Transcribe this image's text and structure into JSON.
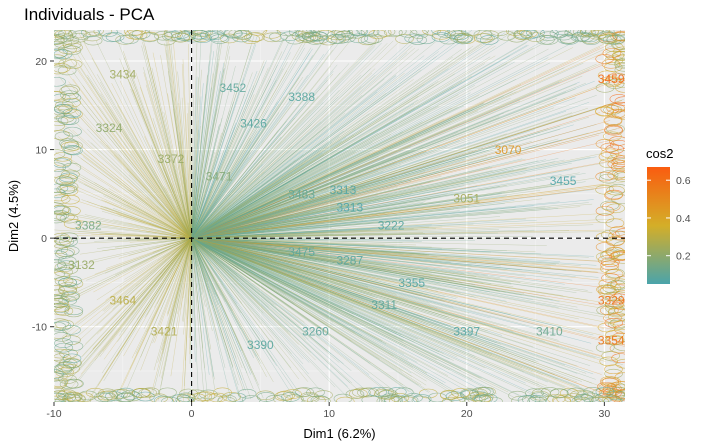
{
  "chart_data": {
    "type": "scatter",
    "title": "Individuals - PCA",
    "xlabel": "Dim1 (6.2%)",
    "ylabel": "Dim2 (4.5%)",
    "xlim": [
      -10,
      31.5
    ],
    "ylim": [
      -18.5,
      23.5
    ],
    "x_ticks": [
      -10,
      0,
      10,
      20,
      30
    ],
    "y_ticks": [
      -10,
      0,
      10,
      20
    ],
    "reference_lines": {
      "x": 0,
      "y": 0,
      "style": "dashed"
    },
    "grid": true,
    "background": "#ebebeb",
    "legend": {
      "title": "cos2",
      "placement": "right",
      "breaks": [
        0.2,
        0.4,
        0.6
      ],
      "range": [
        0.05,
        0.67
      ],
      "colors": [
        "#4aa4ab",
        "#d4ae28",
        "#fa5c10"
      ]
    },
    "point_labels": [
      {
        "x": 4.5,
        "y": 12.5,
        "label": "3426",
        "cos2": 0.08
      },
      {
        "x": -1.5,
        "y": 8.5,
        "label": "3372",
        "cos2": 0.22
      },
      {
        "x": 2.0,
        "y": 6.5,
        "label": "3471",
        "cos2": 0.18
      },
      {
        "x": 11.0,
        "y": 5.0,
        "label": "3313",
        "cos2": 0.07
      },
      {
        "x": 8.0,
        "y": 4.5,
        "label": "3483",
        "cos2": 0.1
      },
      {
        "x": 11.5,
        "y": 3.0,
        "label": "3313",
        "cos2": 0.06
      },
      {
        "x": -7.5,
        "y": 1.0,
        "label": "3382",
        "cos2": 0.15
      },
      {
        "x": 8.0,
        "y": -2.0,
        "label": "3475",
        "cos2": 0.09
      },
      {
        "x": 11.5,
        "y": -3.0,
        "label": "3287",
        "cos2": 0.08
      },
      {
        "x": -5.0,
        "y": -7.5,
        "label": "3464",
        "cos2": 0.3
      },
      {
        "x": -2.0,
        "y": -11.0,
        "label": "3421",
        "cos2": 0.28
      },
      {
        "x": 9.0,
        "y": -11.0,
        "label": "3260",
        "cos2": 0.09
      },
      {
        "x": 20.0,
        "y": -11.0,
        "label": "3397",
        "cos2": 0.07
      },
      {
        "x": 26.0,
        "y": -11.0,
        "label": "3410",
        "cos2": 0.12
      },
      {
        "x": 5.0,
        "y": -12.5,
        "label": "3390",
        "cos2": 0.08
      },
      {
        "x": 23.0,
        "y": 9.5,
        "label": "3070",
        "cos2": 0.45
      },
      {
        "x": 20.0,
        "y": 4.0,
        "label": "3051",
        "cos2": 0.25
      },
      {
        "x": 27.0,
        "y": 6.0,
        "label": "3455",
        "cos2": 0.06
      },
      {
        "x": 8.0,
        "y": 15.5,
        "label": "3388",
        "cos2": 0.08
      },
      {
        "x": 3.0,
        "y": 16.5,
        "label": "3452",
        "cos2": 0.09
      },
      {
        "x": -5.0,
        "y": 18.0,
        "label": "3434",
        "cos2": 0.24
      },
      {
        "x": -6.0,
        "y": 12.0,
        "label": "3324",
        "cos2": 0.2
      },
      {
        "x": 14.5,
        "y": 1.0,
        "label": "3222",
        "cos2": 0.08
      },
      {
        "x": 16.0,
        "y": -5.5,
        "label": "3355",
        "cos2": 0.07
      },
      {
        "x": 14.0,
        "y": -8.0,
        "label": "3311",
        "cos2": 0.09
      },
      {
        "x": -8.0,
        "y": -3.5,
        "label": "3132",
        "cos2": 0.22
      },
      {
        "x": 30.5,
        "y": 17.5,
        "label": "3459",
        "cos2": 0.62
      },
      {
        "x": 30.5,
        "y": -7.5,
        "label": "3329",
        "cos2": 0.6
      },
      {
        "x": 30.5,
        "y": -12.0,
        "label": "3354",
        "cos2": 0.58
      }
    ]
  }
}
